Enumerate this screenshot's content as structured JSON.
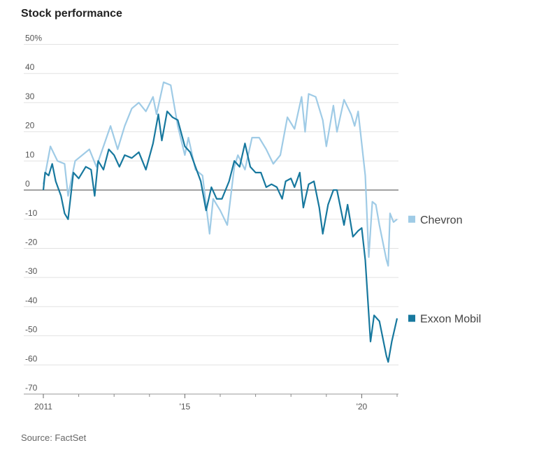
{
  "chart_data": {
    "type": "line",
    "title": "Stock performance",
    "source": "Source: FactSet",
    "xlim": [
      2011,
      2021
    ],
    "xticks": [
      {
        "value": 2011,
        "label": "2011"
      },
      {
        "value": 2015,
        "label": "'15"
      },
      {
        "value": 2020,
        "label": "'20"
      }
    ],
    "minor_xticks": [
      2012,
      2013,
      2014,
      2016,
      2017,
      2018,
      2019,
      2021
    ],
    "ylim": [
      -70,
      50
    ],
    "yticks": [
      {
        "value": 50,
        "label": "50%"
      },
      40,
      30,
      20,
      10,
      0,
      -10,
      -20,
      -30,
      -40,
      -50,
      -60,
      -70
    ],
    "grid": true,
    "legend": "right",
    "series": [
      {
        "name": "Chevron",
        "color": "#9fcbe6",
        "x": [
          2011,
          2011.2,
          2011.4,
          2011.6,
          2011.7,
          2011.9,
          2012.1,
          2012.3,
          2012.5,
          2012.7,
          2012.9,
          2013.1,
          2013.3,
          2013.5,
          2013.7,
          2013.9,
          2014.1,
          2014.2,
          2014.4,
          2014.6,
          2014.8,
          2015,
          2015.1,
          2015.3,
          2015.5,
          2015.7,
          2015.8,
          2016,
          2016.2,
          2016.4,
          2016.5,
          2016.7,
          2016.9,
          2017.1,
          2017.3,
          2017.5,
          2017.7,
          2017.9,
          2018.1,
          2018.3,
          2018.4,
          2018.5,
          2018.7,
          2018.9,
          2019,
          2019.2,
          2019.3,
          2019.5,
          2019.7,
          2019.8,
          2019.9,
          2020.1,
          2020.2,
          2020.3,
          2020.4,
          2020.5,
          2020.7,
          2020.75,
          2020.8,
          2020.9,
          2021
        ],
        "values": [
          2,
          15,
          10,
          9,
          -2,
          10,
          12,
          14,
          8,
          15,
          22,
          14,
          22,
          28,
          30,
          27,
          32,
          26,
          37,
          36,
          22,
          12,
          18,
          7,
          5,
          -15,
          -3,
          -7,
          -12,
          8,
          12,
          7,
          18,
          18,
          14,
          9,
          12,
          25,
          21,
          32,
          20,
          33,
          32,
          24,
          15,
          29,
          20,
          31,
          26,
          22,
          27,
          5,
          -23,
          -4,
          -5,
          -12,
          -24,
          -26,
          -8,
          -11,
          -10
        ]
      },
      {
        "name": "Exxon Mobil",
        "color": "#17789e",
        "x": [
          2011,
          2011.05,
          2011.15,
          2011.25,
          2011.35,
          2011.5,
          2011.6,
          2011.7,
          2011.85,
          2012,
          2012.2,
          2012.35,
          2012.45,
          2012.55,
          2012.7,
          2012.85,
          2013,
          2013.15,
          2013.3,
          2013.5,
          2013.7,
          2013.9,
          2014.1,
          2014.25,
          2014.35,
          2014.5,
          2014.65,
          2014.8,
          2015,
          2015.15,
          2015.3,
          2015.45,
          2015.6,
          2015.75,
          2015.9,
          2016.05,
          2016.25,
          2016.4,
          2016.55,
          2016.7,
          2016.85,
          2017,
          2017.15,
          2017.3,
          2017.45,
          2017.6,
          2017.75,
          2017.85,
          2018,
          2018.1,
          2018.25,
          2018.35,
          2018.5,
          2018.65,
          2018.8,
          2018.9,
          2019.05,
          2019.2,
          2019.3,
          2019.5,
          2019.6,
          2019.75,
          2019.9,
          2020,
          2020.1,
          2020.25,
          2020.35,
          2020.5,
          2020.7,
          2020.75,
          2020.85,
          2021
        ],
        "values": [
          0,
          6,
          5,
          9,
          3,
          -2,
          -8,
          -10,
          6,
          4,
          8,
          7,
          -2,
          10,
          7,
          14,
          12,
          8,
          12,
          11,
          13,
          7,
          16,
          26,
          17,
          27,
          25,
          24,
          15,
          13,
          8,
          3,
          -7,
          1,
          -3,
          -3,
          3,
          10,
          8,
          16,
          8,
          6,
          6,
          1,
          2,
          1,
          -3,
          3,
          4,
          1,
          6,
          -6,
          2,
          3,
          -6,
          -15,
          -5,
          0,
          0,
          -12,
          -5,
          -16,
          -14,
          -13,
          -24,
          -52,
          -43,
          -45,
          -57,
          -59,
          -52,
          -44
        ]
      }
    ]
  }
}
